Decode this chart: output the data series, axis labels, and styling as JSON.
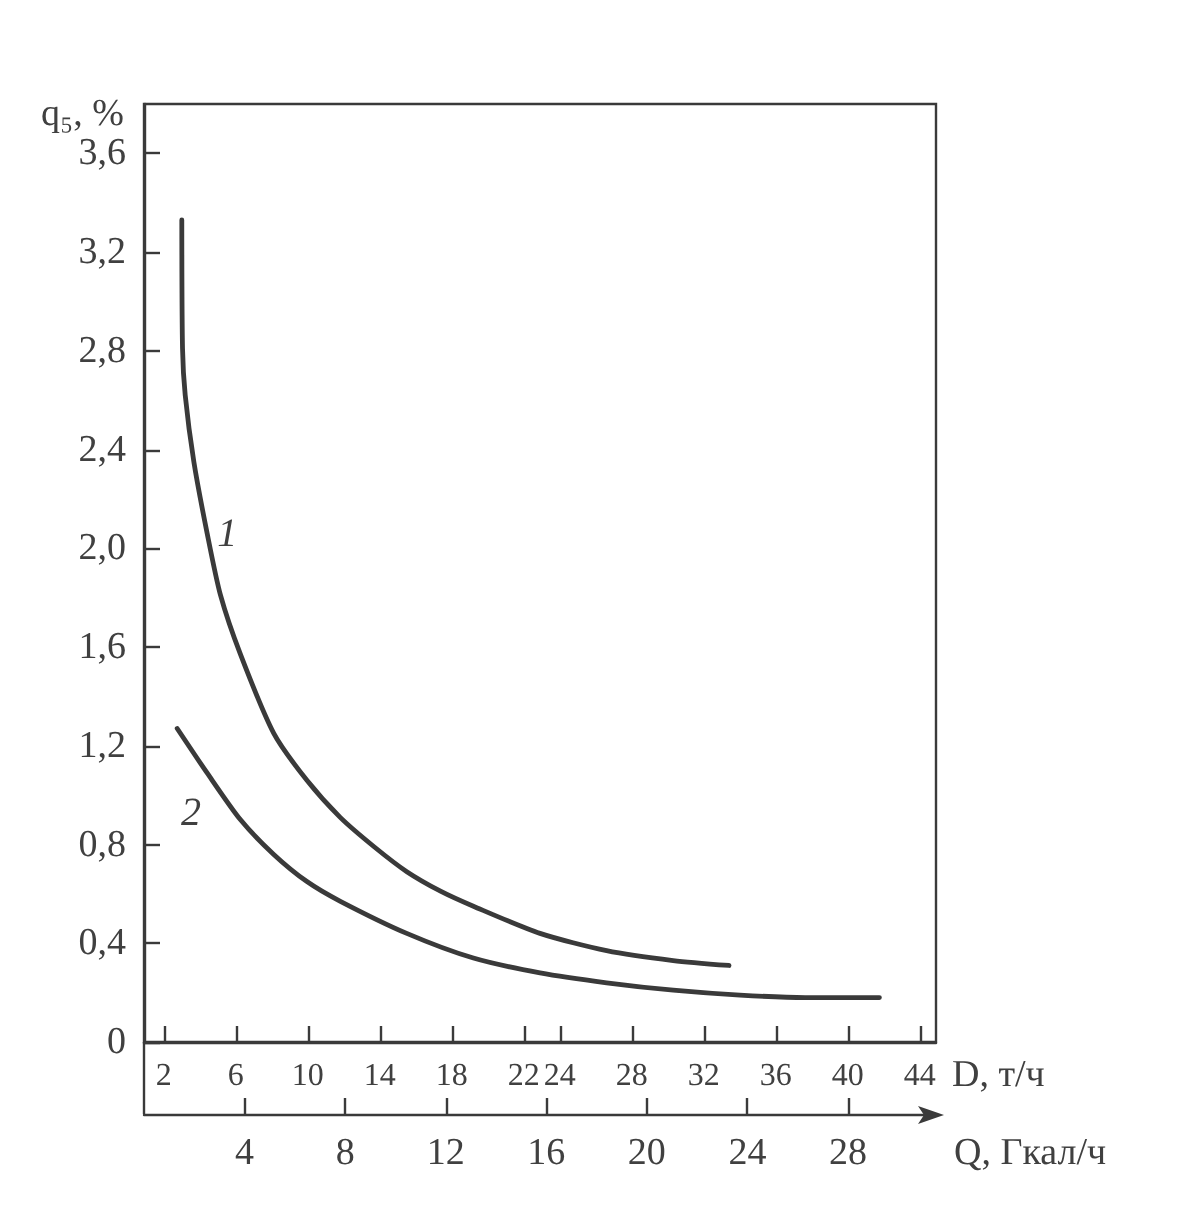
{
  "chart_data": {
    "type": "line",
    "xlabel": "D, т/ч",
    "x2label": "Q, Гкал/ч",
    "ylabel": "q₅, %",
    "xlim": [
      0.9,
      44.9
    ],
    "xticks": [
      2,
      6,
      10,
      14,
      18,
      22,
      24,
      28,
      32,
      36,
      40,
      44
    ],
    "x2lim": [
      0,
      31.5
    ],
    "x2ticks": [
      4,
      8,
      12,
      16,
      20,
      24,
      28
    ],
    "ylim": [
      0,
      3.8
    ],
    "yticks": [
      0,
      {
        "value": 0.4,
        "label": "0,4"
      },
      {
        "value": 0.8,
        "label": "0,8"
      },
      {
        "value": 1.2,
        "label": "1,2"
      },
      {
        "value": 1.6,
        "label": "1,6"
      },
      {
        "value": 2.0,
        "label": "2,0"
      },
      {
        "value": 2.4,
        "label": "2,4"
      },
      {
        "value": 2.8,
        "label": "2,8"
      },
      {
        "value": 3.2,
        "label": "3,2"
      },
      {
        "value": 3.6,
        "label": "3,6"
      }
    ],
    "series": [
      {
        "name": "1",
        "color": "#3a3a3a",
        "x": [
          3.0,
          3.04,
          3.19,
          3.67,
          4.41,
          5.15,
          6.26,
          8.11,
          9.95,
          11.8,
          13.7,
          15.5,
          17.4,
          19.2,
          22.9,
          26.6,
          30.3,
          33.4
        ],
        "values": [
          3.33,
          2.81,
          2.62,
          2.35,
          2.06,
          1.81,
          1.57,
          1.25,
          1.06,
          0.91,
          0.79,
          0.69,
          0.61,
          0.55,
          0.44,
          0.37,
          0.33,
          0.31
        ]
      },
      {
        "name": "2",
        "color": "#3a3a3a",
        "axis": "x2",
        "x": [
          1.32,
          2.51,
          3.84,
          5.16,
          6.48,
          7.81,
          10.45,
          13.1,
          15.75,
          18.4,
          21.05,
          23.7,
          26.3,
          29.25
        ],
        "values": [
          1.27,
          1.09,
          0.9,
          0.76,
          0.65,
          0.57,
          0.44,
          0.34,
          0.28,
          0.24,
          0.21,
          0.19,
          0.18,
          0.18
        ]
      }
    ]
  }
}
